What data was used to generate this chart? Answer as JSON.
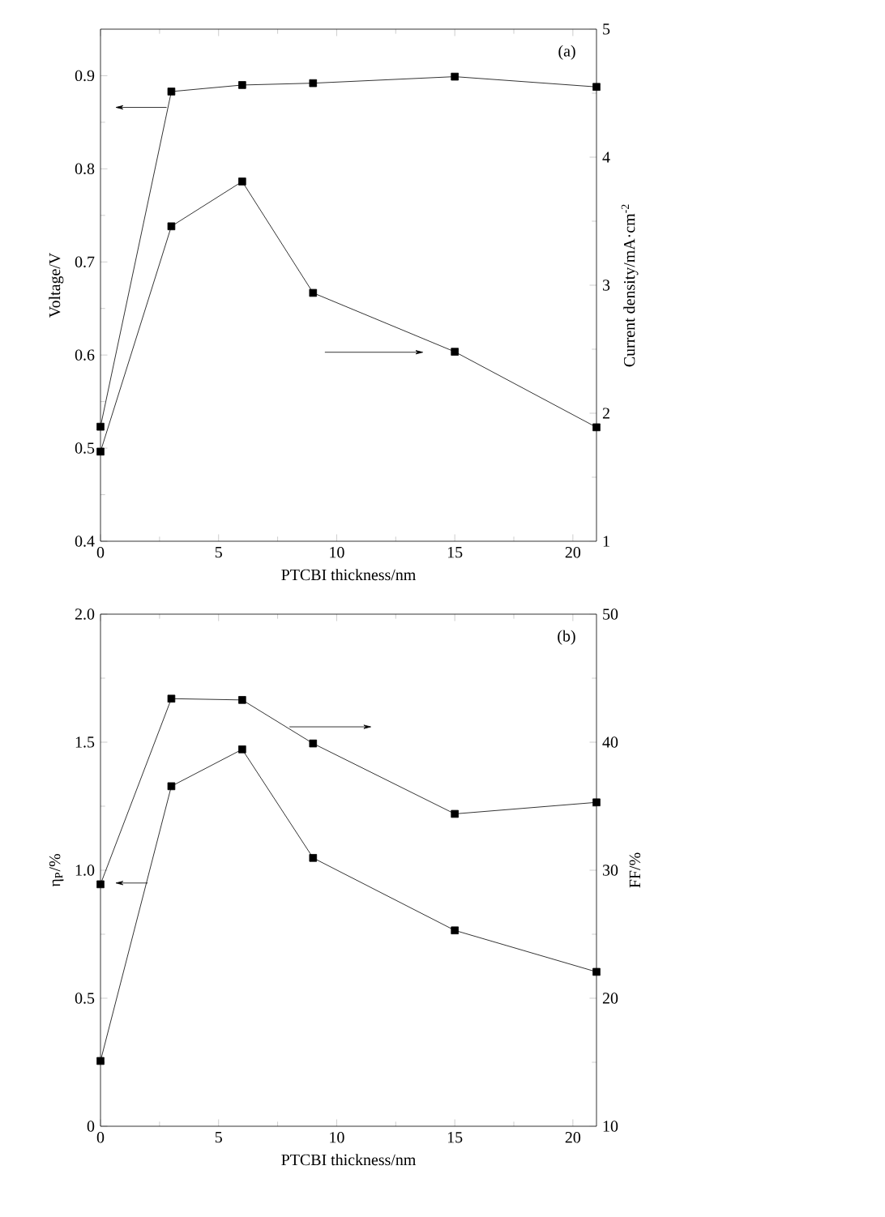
{
  "chart_data": [
    {
      "type": "line",
      "xlabel": "PTCBI thickness/nm",
      "ylabel": "Voltage/V",
      "y2label": "Current density/mA·cm$^{-2}$",
      "annotations": [
        "(a)"
      ],
      "marker": "square",
      "line_style": "solid",
      "x": [
        0,
        3,
        6,
        9,
        15,
        21
      ],
      "xlim": [
        0,
        21
      ],
      "xticks": [
        0,
        5,
        10,
        15,
        20
      ],
      "ylim": [
        0.4,
        0.95
      ],
      "yticks": [
        0.4,
        0.5,
        0.6,
        0.7,
        0.8,
        0.9
      ],
      "y2lim": [
        1,
        5
      ],
      "y2ticks": [
        1,
        2,
        3,
        4,
        5
      ],
      "series": [
        {
          "color": "#000000",
          "values": [
            0.523,
            0.883,
            0.89,
            0.892,
            0.899,
            0.888
          ]
        },
        {
          "color": "#000000",
          "axis": "y2",
          "values": [
            1.7,
            3.46,
            3.81,
            2.94,
            2.48,
            1.89
          ]
        }
      ]
    },
    {
      "type": "line",
      "xlabel": "PTCBI thickness/nm",
      "ylabel": "η$_{P}$/%",
      "y2label": "FF/%",
      "annotations": [
        "(b)"
      ],
      "marker": "square",
      "line_style": "solid",
      "x": [
        0,
        3,
        6,
        9,
        15,
        21
      ],
      "xlim": [
        0,
        21
      ],
      "xticks": [
        0,
        5,
        10,
        15,
        20
      ],
      "ylim": [
        0,
        2
      ],
      "yticks": [
        0,
        0.5,
        {
          "value": 1,
          "label": "1.0"
        },
        1.5,
        {
          "value": 2,
          "label": "2.0"
        }
      ],
      "y2lim": [
        10,
        50
      ],
      "y2ticks": [
        10,
        20,
        30,
        40,
        50
      ],
      "series": [
        {
          "color": "#000000",
          "values": [
            0.255,
            1.328,
            1.472,
            1.048,
            0.765,
            0.603
          ]
        },
        {
          "color": "#000000",
          "axis": "y2",
          "values": [
            28.9,
            43.4,
            43.3,
            39.9,
            34.4,
            35.3
          ]
        }
      ]
    }
  ]
}
